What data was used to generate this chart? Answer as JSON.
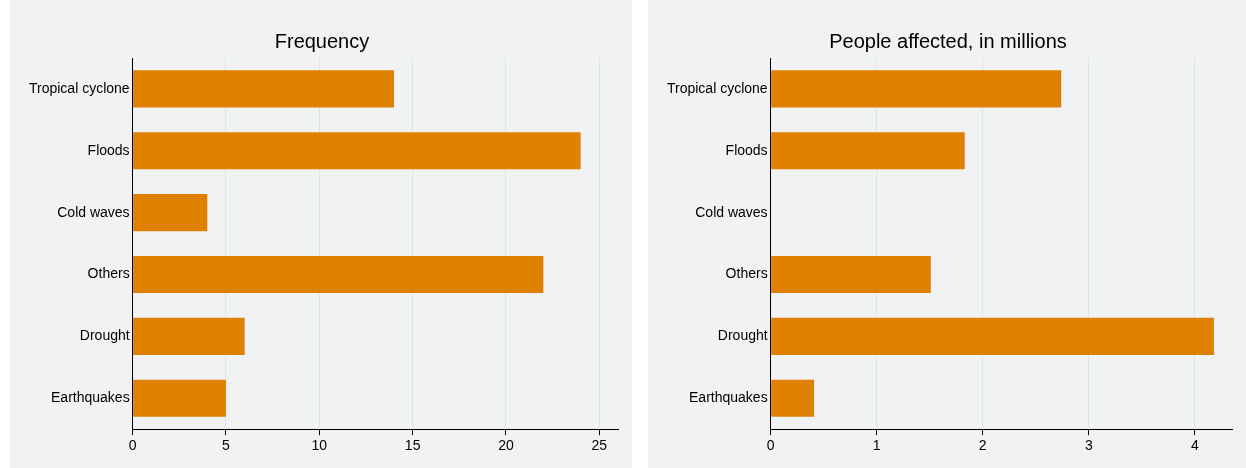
{
  "chart_data": [
    {
      "type": "bar",
      "orientation": "horizontal",
      "title": "Frequency",
      "categories": [
        "Tropical cyclone",
        "Floods",
        "Cold waves",
        "Others",
        "Drought",
        "Earthquakes"
      ],
      "values": [
        14,
        24,
        4,
        22,
        6,
        5
      ],
      "color": "#e08000",
      "xlim": [
        0,
        26
      ],
      "xticks": [
        0,
        5,
        10,
        15,
        20,
        25
      ],
      "grid": "x"
    },
    {
      "type": "bar",
      "orientation": "horizontal",
      "title": "People affected, in millions",
      "categories": [
        "Tropical cyclone",
        "Floods",
        "Cold waves",
        "Others",
        "Drought",
        "Earthquakes"
      ],
      "values": [
        2.74,
        1.83,
        0,
        1.51,
        4.18,
        0.41
      ],
      "color": "#e08000",
      "xlim": [
        0,
        4.35
      ],
      "xticks": [
        0,
        1,
        2,
        3,
        4
      ],
      "grid": "x"
    }
  ]
}
